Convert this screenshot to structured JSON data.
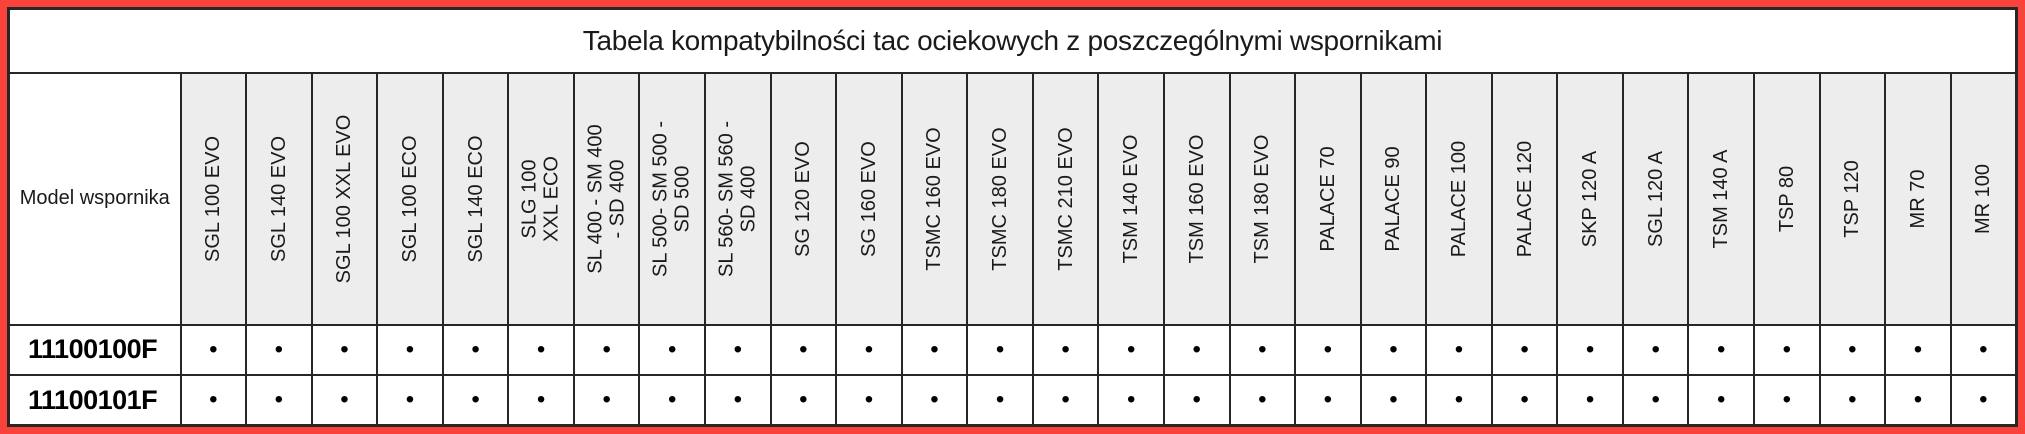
{
  "title": "Tabela kompatybilności tac ociekowych z poszczególnymi wspornikami",
  "colors": {
    "frame_red": "#f8423b",
    "border_dark": "#262626",
    "header_bg": "#ededed",
    "text": "#1a1a1a"
  },
  "table": {
    "corner_label": "Model wspornika",
    "bullet": "•",
    "columns": [
      "SGL 100 EVO",
      "SGL 140 EVO",
      "SGL 100 XXL EVO",
      "SGL 100 ECO",
      "SGL 140 ECO",
      "SLG 100\nXXL ECO",
      "SL 400 - SM 400\n- SD 400",
      "SL 500- SM 500 -\nSD 500",
      "SL 560- SM 560 -\nSD 400",
      "SG 120 EVO",
      "SG 160 EVO",
      "TSMC 160 EVO",
      "TSMC 180 EVO",
      "TSMC 210 EVO",
      "TSM 140 EVO",
      "TSM 160 EVO",
      "TSM 180 EVO",
      "PALACE 70",
      "PALACE 90",
      "PALACE 100",
      "PALACE 120",
      "SKP 120 A",
      "SGL 120 A",
      "TSM 140 A",
      "TSP 80",
      "TSP 120",
      "MR 70",
      "MR 100"
    ],
    "rows": [
      {
        "model": "11100100F",
        "compat": [
          true,
          true,
          true,
          true,
          true,
          true,
          true,
          true,
          true,
          true,
          true,
          true,
          true,
          true,
          true,
          true,
          true,
          true,
          true,
          true,
          true,
          true,
          true,
          true,
          true,
          true,
          true,
          true
        ]
      },
      {
        "model": "11100101F",
        "compat": [
          true,
          true,
          true,
          true,
          true,
          true,
          true,
          true,
          true,
          true,
          true,
          true,
          true,
          true,
          true,
          true,
          true,
          true,
          true,
          true,
          true,
          true,
          true,
          true,
          true,
          true,
          true,
          true
        ]
      }
    ]
  }
}
